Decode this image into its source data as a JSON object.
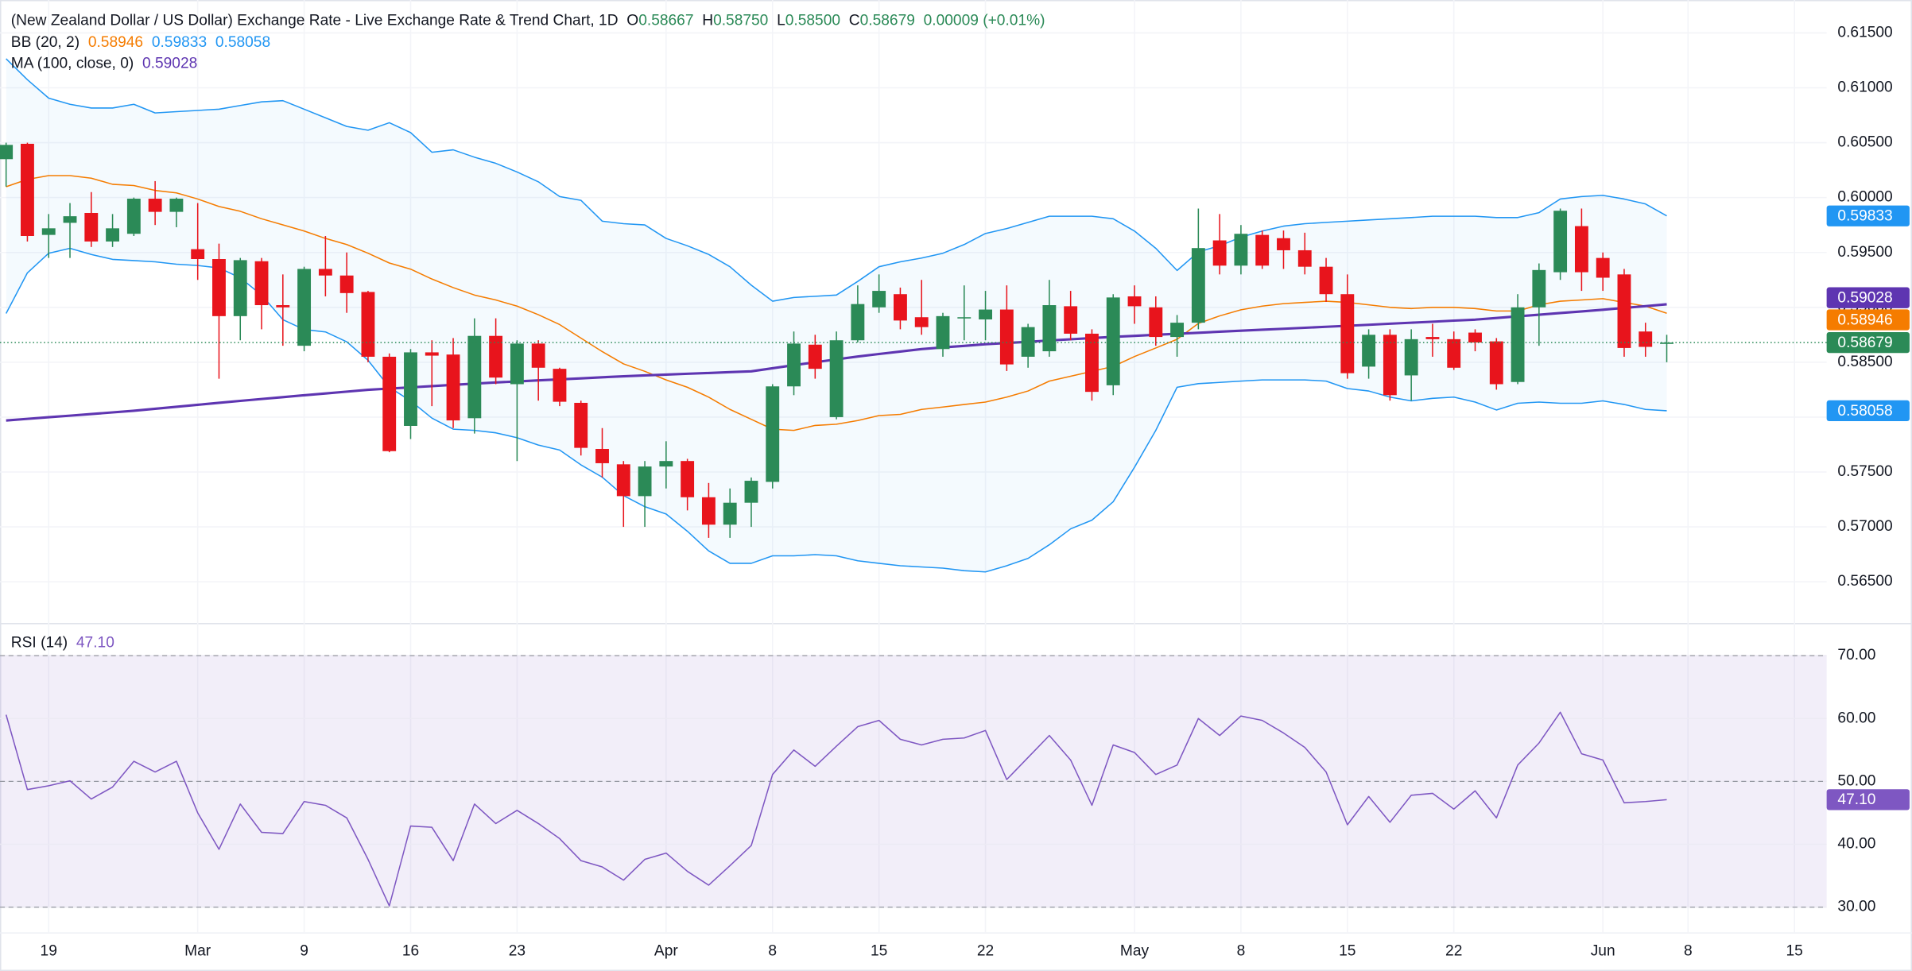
{
  "chart_data": {
    "type": "candlestick",
    "title": "(New Zealand Dollar / US Dollar) Exchange Rate - Live Exchange Rate & Trend Chart, 1D",
    "ohlc_header": [
      {
        "label": "O",
        "value": "0.58667"
      },
      {
        "label": "H",
        "value": "0.58750"
      },
      {
        "label": "L",
        "value": "0.58500"
      },
      {
        "label": "C",
        "value": "0.58679"
      }
    ],
    "change": "0.00009 (+0.01%)",
    "categories": [
      null,
      null,
      "19",
      null,
      null,
      null,
      null,
      null,
      null,
      "Mar",
      null,
      null,
      null,
      null,
      "9",
      null,
      null,
      null,
      null,
      "16",
      null,
      null,
      null,
      null,
      "23",
      null,
      null,
      null,
      null,
      null,
      null,
      "Apr",
      null,
      null,
      null,
      null,
      "8",
      null,
      null,
      null,
      null,
      "15",
      null,
      null,
      null,
      null,
      "22",
      null,
      null,
      null,
      null,
      null,
      null,
      "May",
      null,
      null,
      null,
      null,
      "8",
      null,
      null,
      null,
      null,
      "15",
      null,
      null,
      null,
      null,
      "22",
      null,
      null,
      null,
      null,
      null,
      null,
      "Jun",
      null,
      null,
      null,
      "8",
      null,
      null,
      null,
      null,
      "15",
      null
    ],
    "open": [
      0.6035,
      0.6049,
      0.5966,
      0.5977,
      0.5986,
      0.596,
      0.5967,
      0.5999,
      0.5987,
      0.5953,
      0.5944,
      0.5892,
      0.5942,
      0.5902,
      0.5865,
      0.5935,
      0.5929,
      0.5914,
      0.5855,
      0.5792,
      0.5859,
      0.5857,
      0.5799,
      0.5874,
      0.583,
      0.5867,
      0.5844,
      0.5813,
      0.5771,
      0.5757,
      0.5728,
      0.5755,
      0.576,
      0.5727,
      0.5702,
      0.5722,
      0.5741,
      0.5828,
      0.5866,
      0.58,
      0.587,
      0.59,
      0.5912,
      0.5891,
      0.5862,
      0.589,
      0.5889,
      0.5898,
      0.5855,
      0.586,
      0.5901,
      0.5876,
      0.5829,
      0.591,
      0.59,
      0.5873,
      0.5886,
      0.5961,
      0.5938,
      0.5966,
      0.5963,
      0.5952,
      0.5937,
      0.5912,
      0.5846,
      0.5875,
      0.5838,
      0.5873,
      0.5871,
      0.5877,
      0.5869,
      0.5832,
      0.59,
      0.5932,
      0.5974,
      0.5945,
      0.593,
      0.5878,
      0.58667,
      null,
      null,
      null,
      null,
      null,
      null,
      null
    ],
    "high": [
      0.605,
      0.605,
      0.5985,
      0.5995,
      0.6005,
      0.5985,
      0.6,
      0.6015,
      0.6,
      0.5995,
      0.5958,
      0.5945,
      0.5945,
      0.593,
      0.5937,
      0.5965,
      0.595,
      0.5915,
      0.5858,
      0.5862,
      0.587,
      0.5872,
      0.589,
      0.589,
      0.587,
      0.587,
      0.5845,
      0.5815,
      0.579,
      0.576,
      0.576,
      0.5778,
      0.5762,
      0.574,
      0.5735,
      0.5745,
      0.583,
      0.5878,
      0.5875,
      0.5878,
      0.592,
      0.593,
      0.5918,
      0.5925,
      0.5895,
      0.592,
      0.5915,
      0.592,
      0.5885,
      0.5925,
      0.5915,
      0.588,
      0.5912,
      0.592,
      0.591,
      0.5893,
      0.599,
      0.5985,
      0.5975,
      0.597,
      0.597,
      0.5968,
      0.5945,
      0.593,
      0.588,
      0.588,
      0.588,
      0.5885,
      0.5878,
      0.588,
      0.5872,
      0.5912,
      0.594,
      0.599,
      0.599,
      0.595,
      0.5935,
      0.5886,
      0.5875,
      null,
      null,
      null,
      null,
      null,
      null,
      null
    ],
    "low": [
      0.601,
      0.596,
      0.5945,
      0.5945,
      0.5955,
      0.5955,
      0.5965,
      0.5975,
      0.5973,
      0.5925,
      0.5835,
      0.587,
      0.588,
      0.5865,
      0.586,
      0.591,
      0.5895,
      0.585,
      0.5768,
      0.578,
      0.581,
      0.579,
      0.5785,
      0.583,
      0.576,
      0.5815,
      0.581,
      0.5765,
      0.5745,
      0.57,
      0.57,
      0.5735,
      0.5715,
      0.569,
      0.569,
      0.57,
      0.5735,
      0.582,
      0.5835,
      0.5798,
      0.5868,
      0.5895,
      0.588,
      0.5875,
      0.5855,
      0.587,
      0.587,
      0.5842,
      0.5845,
      0.5855,
      0.587,
      0.5815,
      0.582,
      0.5885,
      0.5865,
      0.5855,
      0.588,
      0.593,
      0.593,
      0.5935,
      0.5935,
      0.593,
      0.5905,
      0.5835,
      0.5835,
      0.5815,
      0.5815,
      0.5855,
      0.5843,
      0.586,
      0.5825,
      0.583,
      0.5865,
      0.5925,
      0.5915,
      0.5915,
      0.5855,
      0.5855,
      0.585,
      null,
      null,
      null,
      null,
      null,
      null,
      null
    ],
    "close": [
      0.6048,
      0.5965,
      0.5972,
      0.5983,
      0.596,
      0.5972,
      0.5999,
      0.5987,
      0.5999,
      0.5944,
      0.5892,
      0.5943,
      0.5902,
      0.59,
      0.5935,
      0.5929,
      0.5913,
      0.5855,
      0.5769,
      0.5859,
      0.5856,
      0.5797,
      0.5874,
      0.5836,
      0.5867,
      0.5845,
      0.5814,
      0.5772,
      0.5758,
      0.5728,
      0.5755,
      0.576,
      0.5727,
      0.5702,
      0.5722,
      0.5742,
      0.5828,
      0.5867,
      0.5844,
      0.587,
      0.5903,
      0.5915,
      0.5888,
      0.5882,
      0.5892,
      0.5891,
      0.5898,
      0.5848,
      0.5882,
      0.5902,
      0.5876,
      0.5823,
      0.5909,
      0.5901,
      0.5873,
      0.5886,
      0.5954,
      0.5938,
      0.5967,
      0.5938,
      0.5952,
      0.5937,
      0.5912,
      0.584,
      0.5875,
      0.582,
      0.5871,
      0.5871,
      0.5845,
      0.5868,
      0.583,
      0.59,
      0.5934,
      0.5988,
      0.5932,
      0.5927,
      0.5863,
      0.5864,
      0.58679,
      null,
      null,
      null,
      null,
      null,
      null,
      null
    ],
    "close_value_label": "0.58679",
    "colors": {
      "up": "#2b8a57",
      "down": "#e8141c"
    },
    "ylim": [
      0.5613,
      0.618
    ],
    "yticks": [
      {
        "value": 0.565,
        "label": "0.56500"
      },
      {
        "value": 0.57,
        "label": "0.57000"
      },
      {
        "value": 0.575,
        "label": "0.57500"
      },
      {
        "value": 0.58,
        "label": "0.58000"
      },
      {
        "value": 0.585,
        "label": "0.58500"
      },
      {
        "value": 0.59,
        "label": "0.59000"
      },
      {
        "value": 0.595,
        "label": "0.59500"
      },
      {
        "value": 0.6,
        "label": "0.60000"
      },
      {
        "value": 0.605,
        "label": "0.60500"
      },
      {
        "value": 0.61,
        "label": "0.61000"
      },
      {
        "value": 0.615,
        "label": "0.61500"
      }
    ],
    "grid": true,
    "bollinger": {
      "label": "BB (20, 2)",
      "upper": [
        0.61265,
        0.61074,
        0.60906,
        0.6085,
        0.60816,
        0.60816,
        0.6085,
        0.60771,
        0.60783,
        0.60794,
        0.60805,
        0.60839,
        0.60872,
        0.60883,
        0.60805,
        0.60727,
        0.60648,
        0.60614,
        0.60682,
        0.60592,
        0.60413,
        0.60435,
        0.60368,
        0.60312,
        0.60233,
        0.60144,
        0.60009,
        0.59975,
        0.59785,
        0.59762,
        0.59751,
        0.59628,
        0.59561,
        0.59482,
        0.5937,
        0.59202,
        0.59056,
        0.5909,
        0.59101,
        0.59112,
        0.59236,
        0.5937,
        0.59415,
        0.59449,
        0.59493,
        0.59572,
        0.59673,
        0.59718,
        0.59774,
        0.5983,
        0.5983,
        0.5983,
        0.59807,
        0.59695,
        0.59538,
        0.59336,
        0.59505,
        0.59561,
        0.59639,
        0.59695,
        0.5974,
        0.59762,
        0.59774,
        0.59785,
        0.59796,
        0.59807,
        0.59818,
        0.5983,
        0.5983,
        0.5983,
        0.59818,
        0.59818,
        0.59863,
        0.59987,
        0.60009,
        0.6002,
        0.59987,
        0.59942,
        0.59833,
        null,
        null,
        null,
        null,
        null,
        null,
        null
      ],
      "basis": [
        0.60099,
        0.60166,
        0.602,
        0.602,
        0.60177,
        0.60121,
        0.6011,
        0.60065,
        0.60043,
        0.59987,
        0.59919,
        0.59875,
        0.59807,
        0.59751,
        0.59695,
        0.59628,
        0.59572,
        0.59493,
        0.59404,
        0.59348,
        0.59258,
        0.5918,
        0.59112,
        0.59067,
        0.59011,
        0.58933,
        0.58843,
        0.5872,
        0.58597,
        0.58485,
        0.58417,
        0.58339,
        0.58272,
        0.58182,
        0.5807,
        0.5798,
        0.5789,
        0.57879,
        0.57924,
        0.57935,
        0.57969,
        0.58014,
        0.58025,
        0.5807,
        0.58092,
        0.58115,
        0.58137,
        0.58182,
        0.58238,
        0.58328,
        0.58372,
        0.58417,
        0.58462,
        0.58552,
        0.5863,
        0.58709,
        0.58854,
        0.58922,
        0.58978,
        0.59011,
        0.59034,
        0.59045,
        0.59056,
        0.59045,
        0.59023,
        0.59,
        0.58989,
        0.59,
        0.59,
        0.58989,
        0.58967,
        0.58967,
        0.59023,
        0.59056,
        0.59067,
        0.59079,
        0.59045,
        0.59011,
        0.58946,
        null,
        null,
        null,
        null,
        null,
        null,
        null
      ],
      "lower": [
        0.58944,
        0.59314,
        0.59493,
        0.59538,
        0.59482,
        0.59437,
        0.59426,
        0.59415,
        0.59393,
        0.59381,
        0.59359,
        0.59269,
        0.59112,
        0.58888,
        0.58798,
        0.58776,
        0.58686,
        0.58518,
        0.58272,
        0.58148,
        0.57991,
        0.5789,
        0.57879,
        0.57857,
        0.57812,
        0.57745,
        0.577,
        0.57565,
        0.57453,
        0.57285,
        0.57184,
        0.57117,
        0.5696,
        0.56781,
        0.56668,
        0.56668,
        0.56736,
        0.56736,
        0.56747,
        0.56736,
        0.56691,
        0.56668,
        0.56646,
        0.56635,
        0.56624,
        0.56601,
        0.5659,
        0.56646,
        0.56713,
        0.56837,
        0.56982,
        0.57061,
        0.57229,
        0.57543,
        0.57879,
        0.58272,
        0.58305,
        0.58316,
        0.58328,
        0.58339,
        0.58339,
        0.58339,
        0.58328,
        0.5826,
        0.58238,
        0.58182,
        0.58148,
        0.58171,
        0.58182,
        0.58137,
        0.58065,
        0.58126,
        0.58137,
        0.58126,
        0.58126,
        0.58148,
        0.58115,
        0.5807,
        0.58058,
        null,
        null,
        null,
        null,
        null,
        null,
        null
      ],
      "value_labels": {
        "basis": "0.58946",
        "upper": "0.59833",
        "lower": "0.58058"
      },
      "colors": {
        "basis": "#f57c00",
        "upper": "#2196f3",
        "lower": "#2196f3"
      },
      "fill_color": "rgba(33,150,243,0.05)"
    },
    "ma": {
      "label": "MA (100, close, 0)",
      "values": [
        0.57969,
        0.57984,
        0.57999,
        0.58013,
        0.58028,
        0.58043,
        0.58058,
        0.58076,
        0.58094,
        0.58112,
        0.5813,
        0.58148,
        0.58165,
        0.58182,
        0.58199,
        0.58215,
        0.58232,
        0.58249,
        0.5826,
        0.58271,
        0.58282,
        0.58294,
        0.58305,
        0.58316,
        0.58325,
        0.58335,
        0.58344,
        0.58353,
        0.58363,
        0.58372,
        0.5838,
        0.58387,
        0.58395,
        0.58402,
        0.5841,
        0.58417,
        0.58445,
        0.58473,
        0.585,
        0.58526,
        0.58552,
        0.58575,
        0.58597,
        0.5862,
        0.58635,
        0.58649,
        0.58664,
        0.58675,
        0.58686,
        0.58698,
        0.58709,
        0.5872,
        0.58731,
        0.5874,
        0.5875,
        0.58759,
        0.58768,
        0.58778,
        0.58787,
        0.58796,
        0.58805,
        0.58814,
        0.58823,
        0.58832,
        0.58841,
        0.58851,
        0.5886,
        0.58869,
        0.58879,
        0.58888,
        0.58903,
        0.58918,
        0.58933,
        0.58948,
        0.58963,
        0.58978,
        0.58995,
        0.59011,
        0.59028,
        null,
        null,
        null,
        null,
        null,
        null,
        null
      ],
      "value_label": "0.59028",
      "color": "#5e35b1"
    },
    "rsi": {
      "label": "RSI (14)",
      "values": [
        60.6,
        48.7,
        49.3,
        50.1,
        47.2,
        49.1,
        53.2,
        51.5,
        53.2,
        45.0,
        39.2,
        46.4,
        41.9,
        41.7,
        46.8,
        46.2,
        44.2,
        37.6,
        30.2,
        42.9,
        42.7,
        37.4,
        46.4,
        43.3,
        45.4,
        43.3,
        40.9,
        37.4,
        36.4,
        34.3,
        37.6,
        38.6,
        35.7,
        33.5,
        36.6,
        39.8,
        51.1,
        55.0,
        52.4,
        55.6,
        58.7,
        59.7,
        56.7,
        55.8,
        56.7,
        56.9,
        58.1,
        50.3,
        53.8,
        57.3,
        53.4,
        46.2,
        55.8,
        54.6,
        51.1,
        52.6,
        60.0,
        57.3,
        60.4,
        59.7,
        57.7,
        55.4,
        51.5,
        43.1,
        47.6,
        43.5,
        47.8,
        48.1,
        45.6,
        48.5,
        44.2,
        52.6,
        56.1,
        61.0,
        54.4,
        53.4,
        46.6,
        46.8,
        47.1,
        null,
        null,
        null,
        null,
        null,
        null,
        null
      ],
      "value_label": "47.10",
      "color": "#7e57c2",
      "band": {
        "upper": 70,
        "middle": 50,
        "lower": 30
      },
      "band_color": "rgba(126,87,194,0.1)",
      "ylim": [
        25.9,
        74.9
      ],
      "yticks": [
        {
          "value": 30,
          "label": "30.00"
        },
        {
          "value": 40,
          "label": "40.00"
        },
        {
          "value": 50,
          "label": "50.00"
        },
        {
          "value": 60,
          "label": "60.00"
        },
        {
          "value": 70,
          "label": "70.00"
        }
      ]
    }
  }
}
